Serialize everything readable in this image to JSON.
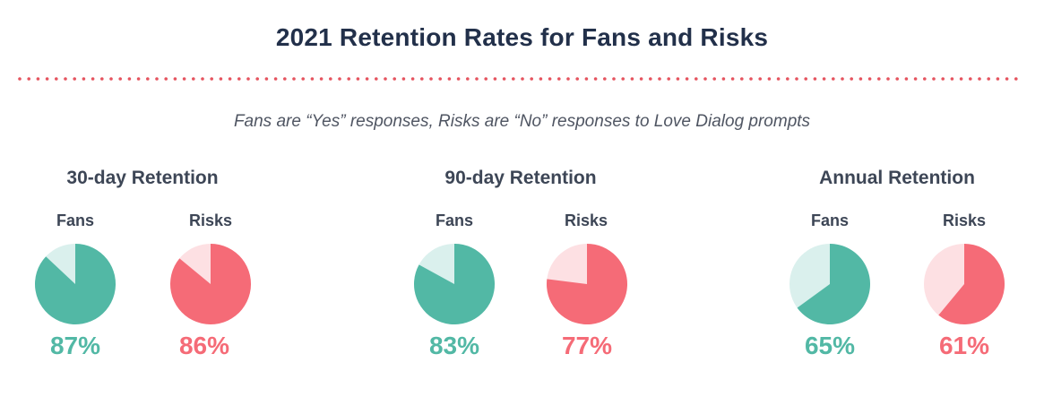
{
  "title": "2021 Retention Rates for Fans and Risks",
  "subtitle": "Fans are “Yes” responses, Risks are “No” responses to Love Dialog prompts",
  "colors": {
    "fans": "#52b8a5",
    "fans_light": "#daf0ed",
    "risks": "#f56b77",
    "risks_light": "#fde0e3",
    "divider": "#e5535e"
  },
  "chart_data": [
    {
      "type": "pie",
      "title": "30-day Retention",
      "pies": [
        {
          "label": "Fans",
          "value": 87,
          "display": "87%"
        },
        {
          "label": "Risks",
          "value": 86,
          "display": "86%"
        }
      ]
    },
    {
      "type": "pie",
      "title": "90-day Retention",
      "pies": [
        {
          "label": "Fans",
          "value": 83,
          "display": "83%"
        },
        {
          "label": "Risks",
          "value": 77,
          "display": "77%"
        }
      ]
    },
    {
      "type": "pie",
      "title": "Annual Retention",
      "pies": [
        {
          "label": "Fans",
          "value": 65,
          "display": "65%"
        },
        {
          "label": "Risks",
          "value": 61,
          "display": "61%"
        }
      ]
    }
  ]
}
